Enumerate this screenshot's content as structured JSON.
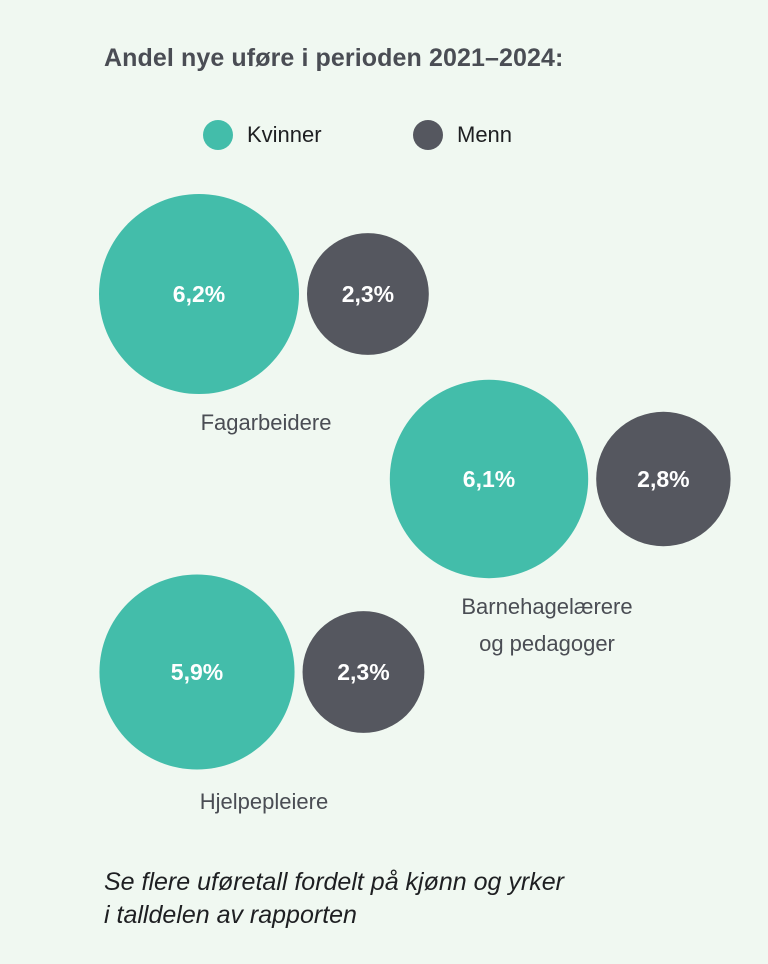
{
  "title": "Andel nye uføre i perioden 2021–2024:",
  "legend": [
    {
      "label": "Kvinner",
      "color": "#43bdaa"
    },
    {
      "label": "Menn",
      "color": "#55575f"
    }
  ],
  "footer": {
    "line1": "Se flere uføretall fordelt på kjønn og yrker",
    "line2": "i talldelen av rapporten"
  },
  "chart_data": {
    "type": "bubble",
    "unit": "%",
    "series": [
      {
        "name": "Kvinner",
        "color": "#43bdaa",
        "values": [
          6.2,
          6.1,
          5.9
        ]
      },
      {
        "name": "Menn",
        "color": "#55575f",
        "values": [
          2.3,
          2.8,
          2.3
        ]
      }
    ],
    "groups": [
      {
        "label_lines": [
          "Fagarbeidere"
        ],
        "kvinner": "6,2%",
        "menn": "2,3%"
      },
      {
        "label_lines": [
          "Barnehagelærere",
          "og pedagoger"
        ],
        "kvinner": "6,1%",
        "menn": "2,8%"
      },
      {
        "label_lines": [
          "Hjelpepleiere"
        ],
        "kvinner": "5,9%",
        "menn": "2,3%"
      }
    ]
  }
}
